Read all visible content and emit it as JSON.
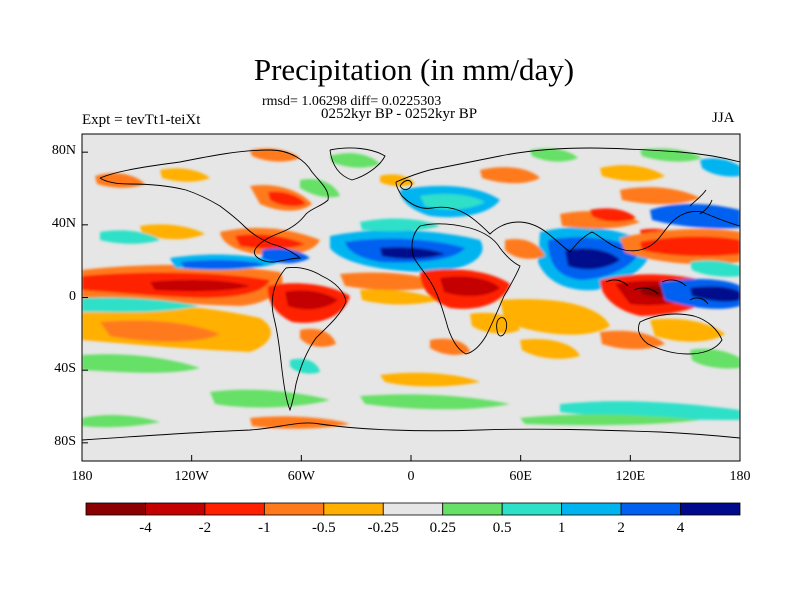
{
  "title": "Precipitation (in mm/day)",
  "stats": "rmsd= 1.06298 diff= 0.0225303",
  "period": "0252kyr BP - 0252kyr BP",
  "experiment": "Expt = tevTt1-teiXt",
  "season": "JJA",
  "lat_ticks": [
    {
      "value": 80,
      "label": "80N"
    },
    {
      "value": 40,
      "label": "40N"
    },
    {
      "value": 0,
      "label": "0"
    },
    {
      "value": -40,
      "label": "40S"
    },
    {
      "value": -80,
      "label": "80S"
    }
  ],
  "lon_ticks": [
    {
      "value": -180,
      "label": "180"
    },
    {
      "value": -120,
      "label": "120W"
    },
    {
      "value": -60,
      "label": "60W"
    },
    {
      "value": 0,
      "label": "0"
    },
    {
      "value": 60,
      "label": "60E"
    },
    {
      "value": 120,
      "label": "120E"
    },
    {
      "value": 180,
      "label": "180"
    }
  ],
  "colorbar": {
    "colors": [
      "#8b0000",
      "#c40000",
      "#ff2000",
      "#ff7a1a",
      "#ffb000",
      "#e6e6e6",
      "#66e066",
      "#2ee0c8",
      "#00b4f0",
      "#0060f0",
      "#000a8c"
    ],
    "labels": [
      "-4",
      "-2",
      "-1",
      "-0.5",
      "-0.25",
      "0.25",
      "0.5",
      "1",
      "2",
      "4"
    ]
  },
  "map": {
    "background_color": "#e6e6e6",
    "coastline_color": "#000000"
  }
}
